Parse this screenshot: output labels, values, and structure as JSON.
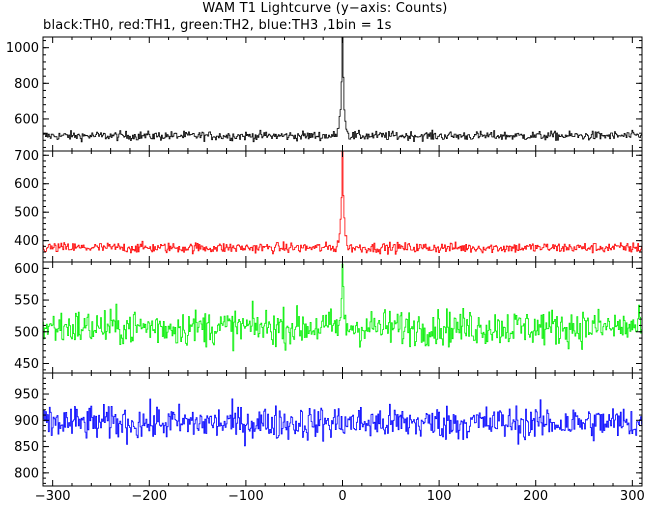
{
  "title": "WAM T1 Lightcurve (y−axis: Counts)",
  "subtitle": "black:TH0, red:TH1, green:TH2, blue:TH3 ,1bin = 1s",
  "chart_data": {
    "type": "line",
    "bin_seconds": 1,
    "x_range": [
      -310,
      310
    ],
    "x_ticks": [
      -300,
      -200,
      -100,
      0,
      100,
      200,
      300
    ],
    "x_tick_labels": [
      "−300",
      "−200",
      "−100",
      "0",
      "100",
      "200",
      "300"
    ],
    "panels": [
      {
        "name": "TH0",
        "color": "#000000",
        "ylim": [
          420,
          1060
        ],
        "y_ticks": [
          600,
          800,
          1000
        ],
        "background": 505,
        "noise": 25,
        "peak": 1090,
        "peak_x": 0
      },
      {
        "name": "TH1",
        "color": "#ff0000",
        "ylim": [
          325,
          715
        ],
        "y_ticks": [
          400,
          500,
          600,
          700
        ],
        "background": 375,
        "noise": 18,
        "peak": 720,
        "peak_x": 0
      },
      {
        "name": "TH2",
        "color": "#00ee00",
        "ylim": [
          435,
          610
        ],
        "y_ticks": [
          450,
          500,
          550,
          600
        ],
        "background": 507,
        "noise": 28,
        "peak": 600,
        "peak_x": 0
      },
      {
        "name": "TH3",
        "color": "#0000ff",
        "ylim": [
          775,
          990
        ],
        "y_ticks": [
          800,
          850,
          900,
          950
        ],
        "background": 895,
        "noise": 32,
        "peak": 900,
        "peak_x": 0
      }
    ]
  }
}
